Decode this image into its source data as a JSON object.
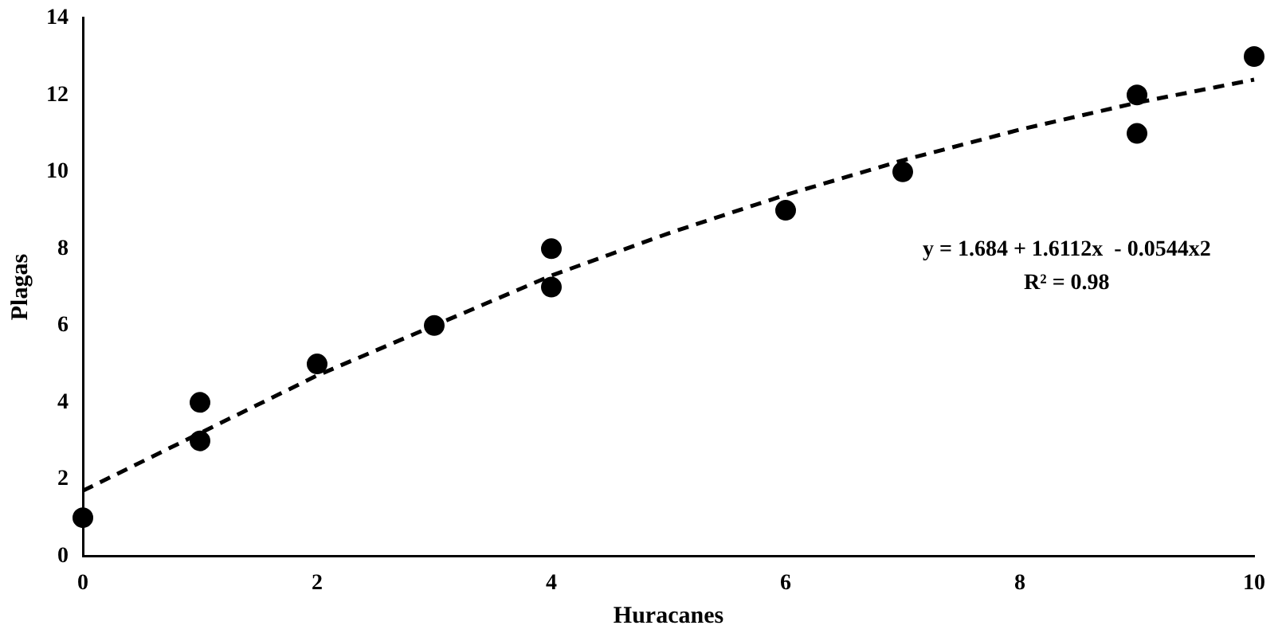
{
  "chart_data": {
    "type": "scatter",
    "xlabel": "Huracanes",
    "ylabel": "Plagas",
    "x": [
      0,
      1,
      1,
      2,
      3,
      4,
      4,
      6,
      7,
      9,
      9,
      10
    ],
    "series": [
      {
        "type": "scatter",
        "color": "#000000",
        "marker": "circle",
        "values": [
          1,
          4,
          3,
          5,
          6,
          8,
          7,
          9,
          10,
          12,
          11,
          13
        ]
      },
      {
        "type": "line",
        "color": "#000000",
        "line_style": "dashed",
        "marker": "none",
        "x": [
          0,
          1,
          2,
          3,
          4,
          5,
          6,
          7,
          8,
          9,
          10
        ],
        "values": [
          1.7,
          3.2,
          4.7,
          6.0,
          7.3,
          8.4,
          9.4,
          10.3,
          11.1,
          11.8,
          12.4
        ]
      }
    ],
    "xlim": [
      0,
      10
    ],
    "xticks": [
      0,
      2,
      4,
      6,
      8,
      10
    ],
    "ylim": [
      0,
      14
    ],
    "yticks": [
      0,
      2,
      4,
      6,
      8,
      10,
      12,
      14
    ],
    "grid": false,
    "legend": false,
    "annotations": [
      "y = 1.684 + 1.6112x  - 0.0544x2",
      "R² = 0.98"
    ]
  }
}
